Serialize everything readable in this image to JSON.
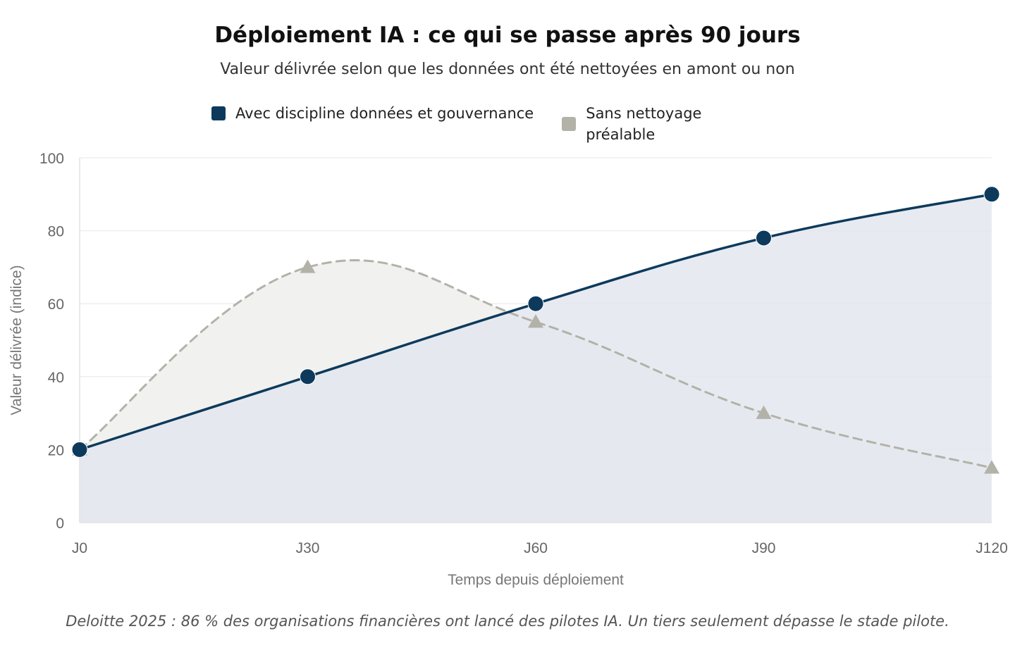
{
  "chart_data": {
    "type": "line",
    "title": "Déploiement IA : ce qui se passe après 90 jours",
    "subtitle": "Valeur délivrée selon que les données ont été nettoyées en amont ou non",
    "xlabel": "Temps depuis déploiement",
    "ylabel": "Valeur délivrée (indice)",
    "categories": [
      "J0",
      "J30",
      "J60",
      "J90",
      "J120"
    ],
    "ylim": [
      0,
      100
    ],
    "yticks": [
      "0",
      "20",
      "40",
      "60",
      "80",
      "100"
    ],
    "grid": true,
    "legend_position": "top",
    "series": [
      {
        "name": "Avec discipline données et gouvernance",
        "values": [
          20,
          40,
          60,
          78,
          90
        ],
        "color": "#0d3a5c",
        "line_style": "solid",
        "marker": "circle",
        "fill": "#e3e8ee"
      },
      {
        "name": "Sans nettoyage préalable",
        "name_lines": [
          "Sans nettoyage",
          "préalable"
        ],
        "values": [
          20,
          70,
          55,
          30,
          15
        ],
        "color": "#b3b2a9",
        "line_style": "dashed",
        "marker": "triangle",
        "fill": "#f1f1ef"
      }
    ]
  },
  "footnote": "Deloitte 2025 : 86 % des organisations financières ont lancé des pilotes IA. Un tiers seulement dépasse le stade pilote."
}
